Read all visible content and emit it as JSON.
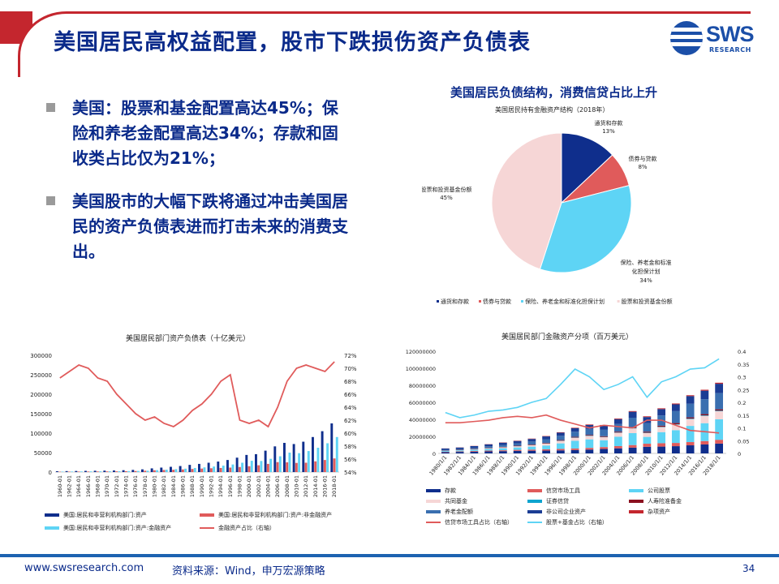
{
  "page": {
    "title": "美国居民高权益配置，股市下跌损伤资产负债表",
    "logo_text": "SWS",
    "logo_sub": "RESEARCH",
    "bullets": [
      "美国：股票和基金配置高达45%；保险和养老金配置高达34%；存款和固收类占比仅为21%；",
      "美国股市的大幅下跌将通过冲击美国居民的资产负债表进而打击未来的消费支出。"
    ],
    "footer_url": "www.swsresearch.com",
    "footer_source": "资料来源：Wind，申万宏源策略",
    "page_number": "34",
    "colors": {
      "brand": "#0a2a8a",
      "accent": "#c4262e",
      "footer": "#1d62b0"
    }
  },
  "chart_data": [
    {
      "type": "pie",
      "heading": "美国居民负债结构，消费信贷占比上升",
      "title": "美国居民持有金融资产结构（2018年）",
      "slices": [
        {
          "name": "通货和存款",
          "value": 13,
          "label": "13%",
          "color": "#0f2e8c"
        },
        {
          "name": "债券与贷款",
          "value": 8,
          "label": "8%",
          "color": "#e05b5b"
        },
        {
          "name": "保险、养老金和标准化担保计划",
          "value": 34,
          "label": "34%",
          "color": "#5ed4f5"
        },
        {
          "name": "股票和投资基金份额",
          "value": 45,
          "label": "45%",
          "color": "#f6d6d6"
        }
      ],
      "legend": [
        "通货和存款",
        "债券与贷款",
        "保险、养老金和标准化担保计划",
        "股票和投资基金份额"
      ]
    },
    {
      "type": "bar",
      "title": "美国居民部门资产负债表（十亿美元）",
      "categories": [
        "1960-01",
        "1962-01",
        "1964-01",
        "1966-01",
        "1968-01",
        "1970-01",
        "1972-01",
        "1974-01",
        "1976-01",
        "1978-01",
        "1980-01",
        "1982-01",
        "1984-01",
        "1986-01",
        "1988-01",
        "1990-01",
        "1992-01",
        "1994-01",
        "1996-01",
        "1998-01",
        "2000-01",
        "2002-01",
        "2004-01",
        "2006-01",
        "2008-01",
        "2010-01",
        "2012-01",
        "2014-01",
        "2016-01",
        "2018-01"
      ],
      "ylim": [
        0,
        300000
      ],
      "y_ticks": [
        "0",
        "50000",
        "100000",
        "150000",
        "200000",
        "250000",
        "300000"
      ],
      "y2lim": [
        54,
        72
      ],
      "y2_ticks": [
        "54%",
        "56%",
        "58%",
        "60%",
        "62%",
        "64%",
        "66%",
        "68%",
        "70%",
        "72%"
      ],
      "series": [
        {
          "name": "美国:居民和非营利机构部门:资产",
          "color": "#0f2e8c",
          "values": [
            2200,
            2500,
            2800,
            3100,
            3400,
            3700,
            4100,
            4800,
            5600,
            7000,
            9500,
            11500,
            13500,
            15500,
            18500,
            21000,
            24000,
            27000,
            31000,
            37000,
            44000,
            46000,
            55000,
            66000,
            75000,
            72000,
            78000,
            90000,
            105000,
            125000
          ]
        },
        {
          "name": "美国:居民和非营利机构部门:资产:非金融资产",
          "color": "#e05b5b",
          "values": [
            1000,
            1100,
            1250,
            1400,
            1550,
            1700,
            1900,
            2300,
            2700,
            3500,
            4600,
            5400,
            6000,
            6800,
            8000,
            9000,
            9800,
            10500,
            11500,
            13000,
            15000,
            17500,
            21000,
            25500,
            25000,
            23500,
            24000,
            27500,
            31000,
            35000
          ]
        },
        {
          "name": "美国:居民和非营利机构部门:资产:金融资产",
          "color": "#5ed4f5",
          "values": [
            1200,
            1400,
            1550,
            1700,
            1850,
            2000,
            2200,
            2500,
            2900,
            3500,
            4900,
            6100,
            7500,
            8700,
            10500,
            12000,
            14200,
            16500,
            19500,
            24000,
            29000,
            28500,
            34000,
            40500,
            50000,
            48500,
            54000,
            62500,
            74000,
            90000
          ]
        },
        {
          "name": "金融资产占比（右轴）",
          "color": "#e05b5b",
          "axis": "right",
          "type": "line",
          "values": [
            68.5,
            69.5,
            70.5,
            70.0,
            68.5,
            68.0,
            66.0,
            64.5,
            63.0,
            62.0,
            62.5,
            61.5,
            61.0,
            62.0,
            63.5,
            64.5,
            66.0,
            68.0,
            69.0,
            62.0,
            61.5,
            62.0,
            61.0,
            64.0,
            68.0,
            70.0,
            70.5,
            70.0,
            69.5,
            71.0
          ]
        }
      ]
    },
    {
      "type": "bar",
      "title": "美国居民部门金融资产分项（百万美元）",
      "categories": [
        "1980/1/1",
        "1982/1/1",
        "1984/1/1",
        "1986/1/1",
        "1988/1/1",
        "1990/1/1",
        "1992/1/1",
        "1994/1/1",
        "1996/1/1",
        "1998/1/1",
        "2000/1/1",
        "2002/1/1",
        "2004/1/1",
        "2006/1/1",
        "2008/1/1",
        "2010/1/1",
        "2012/1/1",
        "2014/1/1",
        "2016/1/1",
        "2018/1/1"
      ],
      "ylim": [
        0,
        120000000
      ],
      "y_ticks": [
        "0",
        "20000000",
        "40000000",
        "60000000",
        "80000000",
        "100000000",
        "120000000"
      ],
      "y2lim": [
        0,
        0.4
      ],
      "y2_ticks": [
        "0",
        "0.05",
        "0.1",
        "0.15",
        "0.2",
        "0.25",
        "0.3",
        "0.35",
        "0.4"
      ],
      "series": [
        {
          "name": "存款",
          "color": "#0f2e8c",
          "values": [
            1500000,
            1800000,
            2100000,
            2400000,
            2700000,
            3000000,
            3200000,
            3300000,
            3600000,
            4000000,
            4500000,
            5200000,
            6000000,
            6800000,
            7800000,
            8000000,
            8500000,
            9500000,
            10500000,
            11500000
          ]
        },
        {
          "name": "信贷市场工具",
          "color": "#e05b5b",
          "values": [
            500000,
            600000,
            800000,
            900000,
            1000000,
            1200000,
            1300000,
            1500000,
            1700000,
            1800000,
            2000000,
            2300000,
            2600000,
            3000000,
            3600000,
            4000000,
            3800000,
            3800000,
            4000000,
            4500000
          ]
        },
        {
          "name": "公司股票",
          "color": "#5ed4f5",
          "values": [
            1000000,
            1200000,
            1500000,
            2000000,
            2400000,
            2800000,
            3500000,
            4500000,
            6500000,
            9000000,
            10000000,
            8000000,
            11000000,
            14000000,
            8000000,
            13000000,
            15000000,
            19000000,
            21000000,
            24000000
          ]
        },
        {
          "name": "共同基金",
          "color": "#f6d6d6",
          "values": [
            100000,
            200000,
            400000,
            700000,
            1000000,
            1300000,
            1700000,
            2200000,
            2800000,
            3500000,
            4000000,
            3500000,
            4500000,
            5500000,
            4500000,
            5800000,
            6500000,
            8000000,
            8500000,
            9500000
          ]
        },
        {
          "name": "证券信贷",
          "color": "#0ea4cf",
          "values": [
            50000,
            60000,
            80000,
            100000,
            120000,
            150000,
            180000,
            250000,
            300000,
            350000,
            400000,
            350000,
            400000,
            500000,
            400000,
            450000,
            500000,
            600000,
            650000,
            700000
          ]
        },
        {
          "name": "人寿险准备金",
          "color": "#8b1020",
          "values": [
            300000,
            350000,
            400000,
            450000,
            500000,
            550000,
            600000,
            700000,
            750000,
            800000,
            850000,
            900000,
            1000000,
            1100000,
            1200000,
            1300000,
            1350000,
            1400000,
            1500000,
            1600000
          ]
        },
        {
          "name": "养老金配额",
          "color": "#3a6fb0",
          "values": [
            800000,
            1000000,
            1300000,
            1800000,
            2300000,
            2800000,
            3500000,
            4200000,
            5000000,
            6000000,
            7000000,
            7500000,
            9000000,
            11000000,
            10000000,
            12000000,
            14000000,
            16000000,
            17500000,
            19000000
          ]
        },
        {
          "name": "非公司企业资产",
          "color": "#1b3d94",
          "values": [
            1500000,
            1700000,
            2000000,
            2300000,
            2600000,
            2800000,
            3000000,
            3300000,
            3700000,
            4200000,
            4700000,
            5000000,
            5800000,
            7000000,
            7200000,
            7500000,
            8000000,
            9000000,
            10000000,
            11000000
          ]
        },
        {
          "name": "杂项资产",
          "color": "#c4262e",
          "values": [
            100000,
            150000,
            200000,
            250000,
            300000,
            350000,
            400000,
            450000,
            500000,
            550000,
            600000,
            650000,
            700000,
            800000,
            850000,
            900000,
            950000,
            1000000,
            1100000,
            1200000
          ]
        },
        {
          "name": "信贷市场工具占比（右轴）",
          "color": "#e05b5b",
          "axis": "right",
          "type": "line",
          "values": [
            0.12,
            0.12,
            0.125,
            0.13,
            0.14,
            0.145,
            0.14,
            0.15,
            0.13,
            0.115,
            0.1,
            0.11,
            0.105,
            0.1,
            0.13,
            0.13,
            0.11,
            0.09,
            0.085,
            0.08
          ]
        },
        {
          "name": "股票+基金占比（右轴）",
          "color": "#5ed4f5",
          "axis": "right",
          "type": "line",
          "values": [
            0.16,
            0.14,
            0.15,
            0.165,
            0.17,
            0.18,
            0.2,
            0.215,
            0.27,
            0.33,
            0.3,
            0.25,
            0.27,
            0.3,
            0.22,
            0.28,
            0.3,
            0.33,
            0.335,
            0.37
          ]
        }
      ]
    }
  ]
}
